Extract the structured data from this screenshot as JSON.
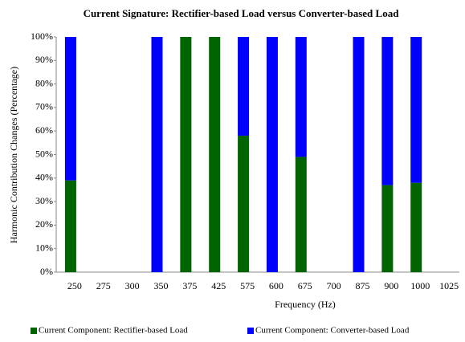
{
  "chart_data": {
    "type": "stacked_bar",
    "title": "Current Signature: Rectifier-based Load versus Converter-based Load",
    "x_label": "Frequency (Hz)",
    "y_label": "Harmonic Contribution Changes (Percentage)",
    "categories": [
      "250",
      "275",
      "300",
      "350",
      "375",
      "425",
      "575",
      "600",
      "675",
      "700",
      "875",
      "900",
      "1000",
      "1025"
    ],
    "series": [
      {
        "name": "Current Component: Rectifier-based Load",
        "color": "#006400",
        "values": [
          39,
          0,
          0,
          0,
          100,
          100,
          58,
          0,
          49,
          0,
          0,
          37,
          38,
          0
        ]
      },
      {
        "name": "Current Component: Converter-based Load",
        "color": "#0000ff",
        "values": [
          61,
          0,
          0,
          100,
          0,
          0,
          42,
          100,
          51,
          0,
          100,
          63,
          62,
          0
        ]
      }
    ],
    "ylim": [
      0,
      100
    ],
    "yticks": [
      {
        "value": 0,
        "label": "0%"
      },
      {
        "value": 10,
        "label": "10%"
      },
      {
        "value": 20,
        "label": "20%"
      },
      {
        "value": 30,
        "label": "30%"
      },
      {
        "value": 40,
        "label": "40%"
      },
      {
        "value": 50,
        "label": "50%"
      },
      {
        "value": 60,
        "label": "60%"
      },
      {
        "value": 70,
        "label": "70%"
      },
      {
        "value": 80,
        "label": "80%"
      },
      {
        "value": 90,
        "label": "90%"
      },
      {
        "value": 100,
        "label": "100%"
      }
    ],
    "legend": "bottom"
  }
}
